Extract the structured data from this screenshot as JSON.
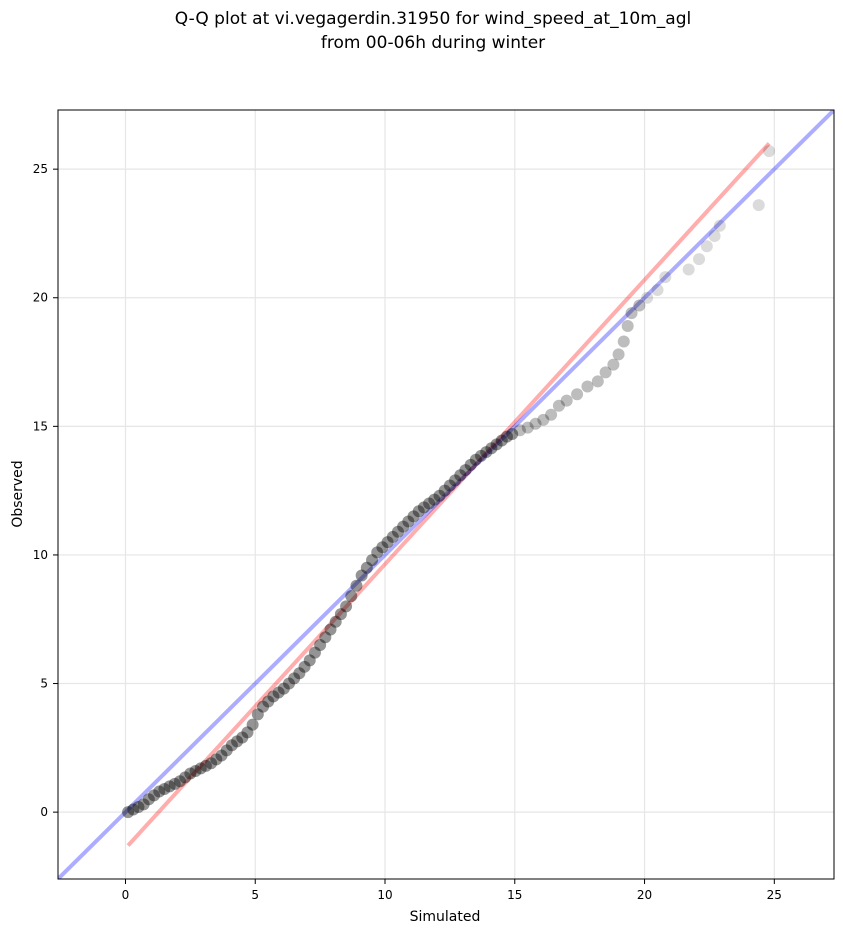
{
  "chart_data": {
    "type": "scatter",
    "title": [
      "Q-Q plot at vi.vegagerdin.31950 for wind_speed_at_10m_agl",
      "from 00-06h during winter"
    ],
    "xlabel": "Simulated",
    "ylabel": "Observed",
    "xlim": [
      -2.6,
      27.3
    ],
    "ylim": [
      -2.6,
      27.3
    ],
    "xticks": [
      0,
      5,
      10,
      15,
      20,
      25
    ],
    "yticks": [
      0,
      5,
      10,
      15,
      20,
      25
    ],
    "grid": true,
    "series": [
      {
        "kind": "scatter",
        "color": "#000000",
        "points": [
          [
            0.1,
            0.0
          ],
          [
            0.3,
            0.1
          ],
          [
            0.5,
            0.2
          ],
          [
            0.7,
            0.3
          ],
          [
            0.9,
            0.5
          ],
          [
            1.1,
            0.65
          ],
          [
            1.3,
            0.8
          ],
          [
            1.5,
            0.9
          ],
          [
            1.7,
            1.0
          ],
          [
            1.9,
            1.1
          ],
          [
            2.1,
            1.2
          ],
          [
            2.3,
            1.35
          ],
          [
            2.5,
            1.5
          ],
          [
            2.7,
            1.6
          ],
          [
            2.9,
            1.7
          ],
          [
            3.1,
            1.8
          ],
          [
            3.3,
            1.9
          ],
          [
            3.5,
            2.05
          ],
          [
            3.7,
            2.2
          ],
          [
            3.9,
            2.4
          ],
          [
            4.1,
            2.6
          ],
          [
            4.3,
            2.75
          ],
          [
            4.5,
            2.9
          ],
          [
            4.7,
            3.1
          ],
          [
            4.9,
            3.4
          ],
          [
            5.1,
            3.8
          ],
          [
            5.3,
            4.1
          ],
          [
            5.5,
            4.3
          ],
          [
            5.7,
            4.5
          ],
          [
            5.9,
            4.65
          ],
          [
            6.1,
            4.8
          ],
          [
            6.3,
            5.0
          ],
          [
            6.5,
            5.2
          ],
          [
            6.7,
            5.4
          ],
          [
            6.9,
            5.65
          ],
          [
            7.1,
            5.9
          ],
          [
            7.3,
            6.2
          ],
          [
            7.5,
            6.5
          ],
          [
            7.7,
            6.8
          ],
          [
            7.9,
            7.1
          ],
          [
            8.1,
            7.4
          ],
          [
            8.3,
            7.7
          ],
          [
            8.5,
            8.0
          ],
          [
            8.7,
            8.4
          ],
          [
            8.9,
            8.8
          ],
          [
            9.1,
            9.2
          ],
          [
            9.3,
            9.5
          ],
          [
            9.5,
            9.8
          ],
          [
            9.7,
            10.1
          ],
          [
            9.9,
            10.3
          ],
          [
            10.1,
            10.5
          ],
          [
            10.3,
            10.7
          ],
          [
            10.5,
            10.9
          ],
          [
            10.7,
            11.1
          ],
          [
            10.9,
            11.3
          ],
          [
            11.1,
            11.5
          ],
          [
            11.3,
            11.7
          ],
          [
            11.5,
            11.85
          ],
          [
            11.7,
            12.0
          ],
          [
            11.9,
            12.15
          ],
          [
            12.1,
            12.3
          ],
          [
            12.3,
            12.5
          ],
          [
            12.5,
            12.7
          ],
          [
            12.7,
            12.9
          ],
          [
            12.9,
            13.1
          ],
          [
            13.1,
            13.3
          ],
          [
            13.3,
            13.5
          ],
          [
            13.5,
            13.7
          ],
          [
            13.7,
            13.85
          ],
          [
            13.9,
            14.0
          ],
          [
            14.1,
            14.15
          ],
          [
            14.3,
            14.3
          ],
          [
            14.5,
            14.45
          ],
          [
            14.7,
            14.6
          ],
          [
            14.9,
            14.7
          ],
          [
            15.2,
            14.85
          ],
          [
            15.5,
            14.95
          ],
          [
            15.8,
            15.1
          ],
          [
            16.1,
            15.25
          ],
          [
            16.4,
            15.45
          ],
          [
            16.7,
            15.8
          ],
          [
            17.0,
            16.0
          ],
          [
            17.4,
            16.25
          ],
          [
            17.8,
            16.55
          ],
          [
            18.2,
            16.75
          ],
          [
            18.5,
            17.1
          ],
          [
            18.8,
            17.4
          ],
          [
            19.0,
            17.8
          ],
          [
            19.2,
            18.3
          ],
          [
            19.35,
            18.9
          ],
          [
            19.5,
            19.4
          ],
          [
            19.8,
            19.7
          ],
          [
            20.1,
            20.0
          ],
          [
            20.5,
            20.3
          ],
          [
            20.8,
            20.8
          ],
          [
            21.7,
            21.1
          ],
          [
            22.1,
            21.5
          ],
          [
            22.4,
            22.0
          ],
          [
            22.7,
            22.4
          ],
          [
            22.9,
            22.8
          ],
          [
            24.4,
            23.6
          ],
          [
            24.8,
            25.7
          ]
        ]
      },
      {
        "kind": "line",
        "color": "#ff0000",
        "from": [
          0.1,
          -1.3
        ],
        "to": [
          24.8,
          26.0
        ]
      },
      {
        "kind": "line",
        "color": "#0000ff",
        "from": [
          -2.6,
          -2.6
        ],
        "to": [
          27.3,
          27.3
        ]
      }
    ]
  }
}
